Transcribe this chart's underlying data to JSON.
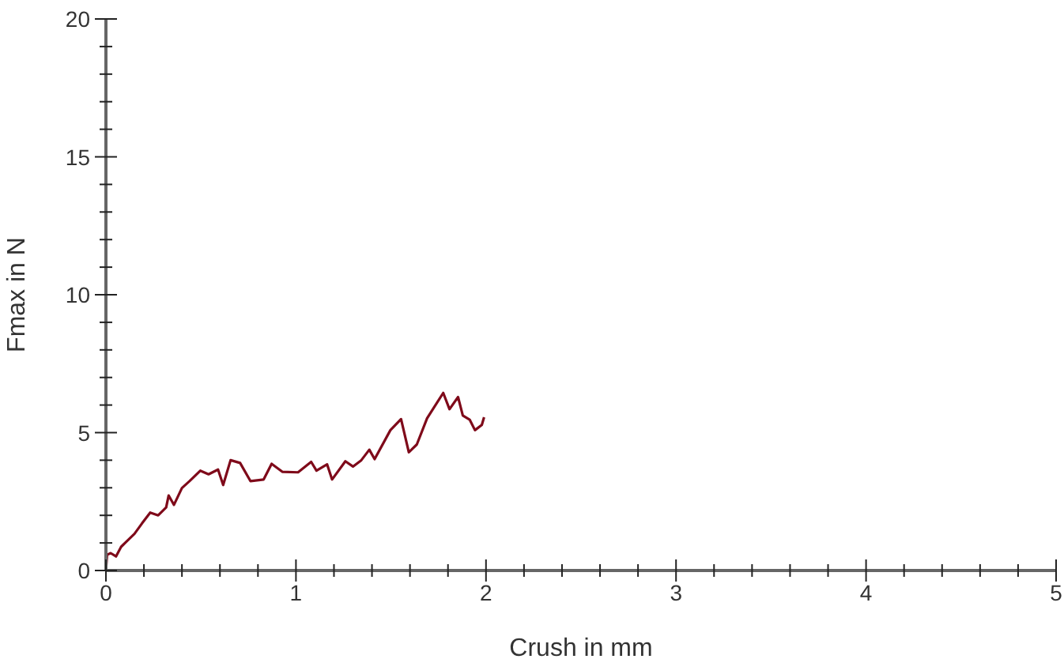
{
  "chart_data": {
    "type": "line",
    "xlabel": "Crush in mm",
    "ylabel": "Fmax in N",
    "xlim": [
      0,
      5
    ],
    "ylim": [
      0,
      20
    ],
    "xticks": [
      0,
      {
        "value": 0.2,
        "label": null
      },
      {
        "value": 0.4,
        "label": null
      },
      {
        "value": 0.6,
        "label": null
      },
      {
        "value": 0.8,
        "label": null
      },
      1,
      {
        "value": 1.2,
        "label": null
      },
      {
        "value": 1.4,
        "label": null
      },
      {
        "value": 1.6,
        "label": null
      },
      {
        "value": 1.8,
        "label": null
      },
      2,
      {
        "value": 2.2,
        "label": null
      },
      {
        "value": 2.4,
        "label": null
      },
      {
        "value": 2.6,
        "label": null
      },
      {
        "value": 2.8,
        "label": null
      },
      3,
      {
        "value": 3.2,
        "label": null
      },
      {
        "value": 3.4,
        "label": null
      },
      {
        "value": 3.6,
        "label": null
      },
      {
        "value": 3.8,
        "label": null
      },
      4,
      {
        "value": 4.2,
        "label": null
      },
      {
        "value": 4.4,
        "label": null
      },
      {
        "value": 4.6,
        "label": null
      },
      {
        "value": 4.8,
        "label": null
      },
      5
    ],
    "yticks": [
      0,
      {
        "value": 1,
        "label": null
      },
      {
        "value": 2,
        "label": null
      },
      {
        "value": 3,
        "label": null
      },
      {
        "value": 4,
        "label": null
      },
      5,
      {
        "value": 6,
        "label": null
      },
      {
        "value": 7,
        "label": null
      },
      {
        "value": 8,
        "label": null
      },
      {
        "value": 9,
        "label": null
      },
      10,
      {
        "value": 11,
        "label": null
      },
      {
        "value": 12,
        "label": null
      },
      {
        "value": 13,
        "label": null
      },
      {
        "value": 14,
        "label": null
      },
      15,
      {
        "value": 16,
        "label": null
      },
      {
        "value": 17,
        "label": null
      },
      {
        "value": 18,
        "label": null
      },
      {
        "value": 19,
        "label": null
      },
      20
    ],
    "grid": false,
    "legend": false,
    "marker": "none",
    "line_style": "solid",
    "series": [
      {
        "color": "#7f0a1a",
        "x": [
          0,
          0.006,
          0.025,
          0.053,
          0.08,
          0.108,
          0.15,
          0.19,
          0.233,
          0.275,
          0.317,
          0.33,
          0.358,
          0.4,
          0.44,
          0.497,
          0.54,
          0.59,
          0.617,
          0.656,
          0.706,
          0.761,
          0.83,
          0.872,
          0.928,
          1.011,
          1.08,
          1.108,
          1.164,
          1.19,
          1.26,
          1.3,
          1.344,
          1.386,
          1.414,
          1.497,
          1.553,
          1.594,
          1.636,
          1.69,
          1.775,
          1.808,
          1.853,
          1.878,
          1.914,
          1.942,
          1.978,
          1.99
        ],
        "values": [
          0,
          0.57,
          0.63,
          0.51,
          0.86,
          1.05,
          1.33,
          1.71,
          2.1,
          2.0,
          2.29,
          2.72,
          2.38,
          2.99,
          3.24,
          3.62,
          3.49,
          3.66,
          3.1,
          4.0,
          3.9,
          3.24,
          3.3,
          3.87,
          3.58,
          3.56,
          3.94,
          3.62,
          3.85,
          3.3,
          3.96,
          3.77,
          4.0,
          4.38,
          4.04,
          5.09,
          5.49,
          4.29,
          4.57,
          5.52,
          6.44,
          5.85,
          6.29,
          5.62,
          5.47,
          5.09,
          5.28,
          5.56
        ]
      }
    ]
  }
}
